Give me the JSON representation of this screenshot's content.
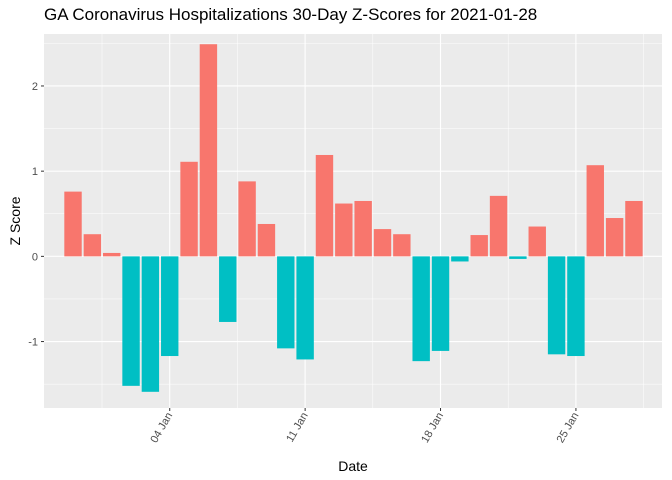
{
  "chart_data": {
    "type": "bar",
    "title": "GA Coronavirus Hospitalizations 30-Day Z-Scores for 2021-01-28",
    "xlabel": "Date",
    "ylabel": "Z Score",
    "x_start": "2020-12-30",
    "x": [
      "2020-12-30",
      "2020-12-31",
      "2021-01-01",
      "2021-01-02",
      "2021-01-03",
      "2021-01-04",
      "2021-01-05",
      "2021-01-06",
      "2021-01-07",
      "2021-01-08",
      "2021-01-09",
      "2021-01-10",
      "2021-01-11",
      "2021-01-12",
      "2021-01-13",
      "2021-01-14",
      "2021-01-15",
      "2021-01-16",
      "2021-01-17",
      "2021-01-18",
      "2021-01-19",
      "2021-01-20",
      "2021-01-21",
      "2021-01-22",
      "2021-01-23",
      "2021-01-24",
      "2021-01-25",
      "2021-01-26",
      "2021-01-27",
      "2021-01-28"
    ],
    "values": [
      0.76,
      0.26,
      0.04,
      -1.52,
      -1.59,
      -1.17,
      1.11,
      2.49,
      -0.77,
      0.88,
      0.38,
      -1.08,
      -1.21,
      1.19,
      0.62,
      0.65,
      0.32,
      0.26,
      -1.23,
      -1.11,
      -0.06,
      0.25,
      0.71,
      -0.03,
      0.35,
      -1.15,
      -1.17,
      1.07,
      0.45,
      0.65
    ],
    "x_ticks": [
      {
        "date": "2021-01-04",
        "label": "04 Jan"
      },
      {
        "date": "2021-01-11",
        "label": "11 Jan"
      },
      {
        "date": "2021-01-18",
        "label": "18 Jan"
      },
      {
        "date": "2021-01-25",
        "label": "25 Jan"
      }
    ],
    "y_ticks": [
      -1,
      0,
      1,
      2
    ],
    "ylim": [
      -1.78,
      2.61
    ],
    "xlim": [
      "2020-12-28",
      "2021-01-30"
    ],
    "positive_color": "#F8766D",
    "negative_color": "#00BFC4",
    "panel_background": "#EBEBEB",
    "grid_major_color": "#FFFFFF",
    "grid": true,
    "legend": "none"
  }
}
